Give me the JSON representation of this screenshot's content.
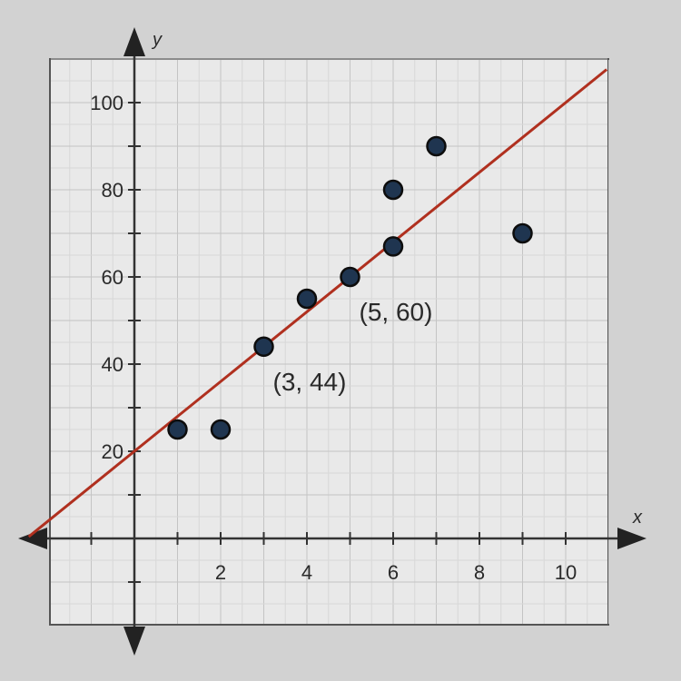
{
  "chart_data": {
    "type": "scatter",
    "title": "",
    "xlabel": "x",
    "ylabel": "y",
    "xlim": [
      -2,
      11
    ],
    "ylim": [
      -20,
      110
    ],
    "grid": true,
    "x_ticks": [
      2,
      4,
      6,
      8,
      10
    ],
    "y_ticks": [
      20,
      40,
      60,
      80,
      100
    ],
    "points": [
      {
        "x": 1,
        "y": 25
      },
      {
        "x": 2,
        "y": 25
      },
      {
        "x": 3,
        "y": 44
      },
      {
        "x": 4,
        "y": 55
      },
      {
        "x": 5,
        "y": 60
      },
      {
        "x": 6,
        "y": 67
      },
      {
        "x": 6,
        "y": 80
      },
      {
        "x": 7,
        "y": 90
      },
      {
        "x": 9,
        "y": 70
      }
    ],
    "trend_line": {
      "slope": 8,
      "intercept": 20,
      "color": "#b0301f"
    },
    "annotations": [
      {
        "text": "(3, 44)",
        "x": 3,
        "y": 44
      },
      {
        "text": "(5, 60)",
        "x": 5,
        "y": 60
      }
    ],
    "point_color": "#1f3550"
  }
}
